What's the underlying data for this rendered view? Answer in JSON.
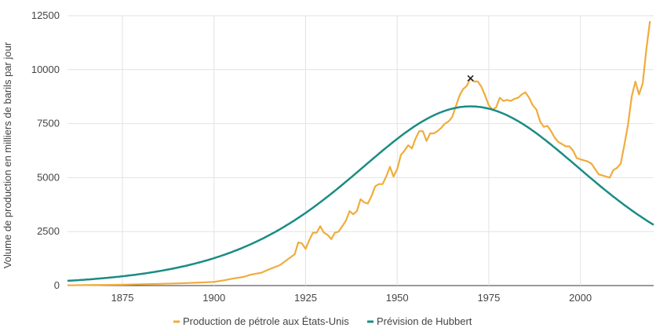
{
  "chart_data": {
    "type": "line",
    "title": "",
    "xlabel": "",
    "ylabel": "Volume de production en milliers de barils par jour",
    "xlim": [
      1860,
      2020
    ],
    "ylim": [
      0,
      12500
    ],
    "x_ticks": [
      "1875",
      "1900",
      "1925",
      "1950",
      "1975",
      "2000"
    ],
    "y_ticks": [
      "0",
      "2500",
      "5000",
      "7500",
      "10000",
      "12500"
    ],
    "grid": true,
    "legend_position": "bottom",
    "series": [
      {
        "name": "Production de pétrole aux États-Unis",
        "color": "#f0ac3c",
        "x": [
          1860,
          1865,
          1870,
          1875,
          1880,
          1885,
          1890,
          1895,
          1900,
          1903,
          1905,
          1908,
          1910,
          1913,
          1915,
          1918,
          1920,
          1922,
          1923,
          1924,
          1925,
          1926,
          1927,
          1928,
          1929,
          1930,
          1931,
          1932,
          1933,
          1934,
          1935,
          1936,
          1937,
          1938,
          1939,
          1940,
          1941,
          1942,
          1943,
          1944,
          1945,
          1946,
          1947,
          1948,
          1949,
          1950,
          1951,
          1952,
          1953,
          1954,
          1955,
          1956,
          1957,
          1958,
          1959,
          1960,
          1961,
          1962,
          1963,
          1964,
          1965,
          1966,
          1967,
          1968,
          1969,
          1970,
          1971,
          1972,
          1973,
          1974,
          1975,
          1976,
          1977,
          1978,
          1979,
          1980,
          1981,
          1982,
          1983,
          1984,
          1985,
          1986,
          1987,
          1988,
          1989,
          1990,
          1991,
          1992,
          1993,
          1994,
          1995,
          1996,
          1997,
          1998,
          1999,
          2000,
          2001,
          2002,
          2003,
          2004,
          2005,
          2006,
          2007,
          2008,
          2009,
          2010,
          2011,
          2012,
          2013,
          2014,
          2015,
          2016,
          2017,
          2018,
          2019
        ],
        "values": [
          10,
          20,
          30,
          40,
          60,
          80,
          100,
          130,
          170,
          250,
          320,
          400,
          500,
          600,
          750,
          950,
          1200,
          1450,
          2000,
          1950,
          1700,
          2100,
          2450,
          2450,
          2750,
          2450,
          2350,
          2150,
          2450,
          2500,
          2750,
          3000,
          3450,
          3300,
          3450,
          4000,
          3850,
          3800,
          4150,
          4600,
          4700,
          4700,
          5050,
          5500,
          5050,
          5400,
          6050,
          6250,
          6500,
          6350,
          6800,
          7150,
          7150,
          6700,
          7050,
          7050,
          7150,
          7300,
          7500,
          7600,
          7800,
          8300,
          8800,
          9100,
          9250,
          9600,
          9450,
          9450,
          9200,
          8800,
          8350,
          8150,
          8250,
          8700,
          8550,
          8600,
          8550,
          8650,
          8700,
          8850,
          8950,
          8700,
          8350,
          8150,
          7600,
          7350,
          7400,
          7150,
          6850,
          6650,
          6550,
          6450,
          6450,
          6250,
          5900,
          5850,
          5800,
          5750,
          5650,
          5400,
          5150,
          5100,
          5050,
          5000,
          5350,
          5450,
          5650,
          6500,
          7450,
          8750,
          9450,
          8850,
          9350,
          10950,
          12250
        ]
      },
      {
        "name": "Prévision de Hubbert",
        "color": "#1a8c84",
        "type": "logistic",
        "peak_x": 1970,
        "peak_y": 8300,
        "sigma": 22
      }
    ],
    "annotations": [
      {
        "marker": "x",
        "x": 1970,
        "y": 9600
      }
    ]
  }
}
